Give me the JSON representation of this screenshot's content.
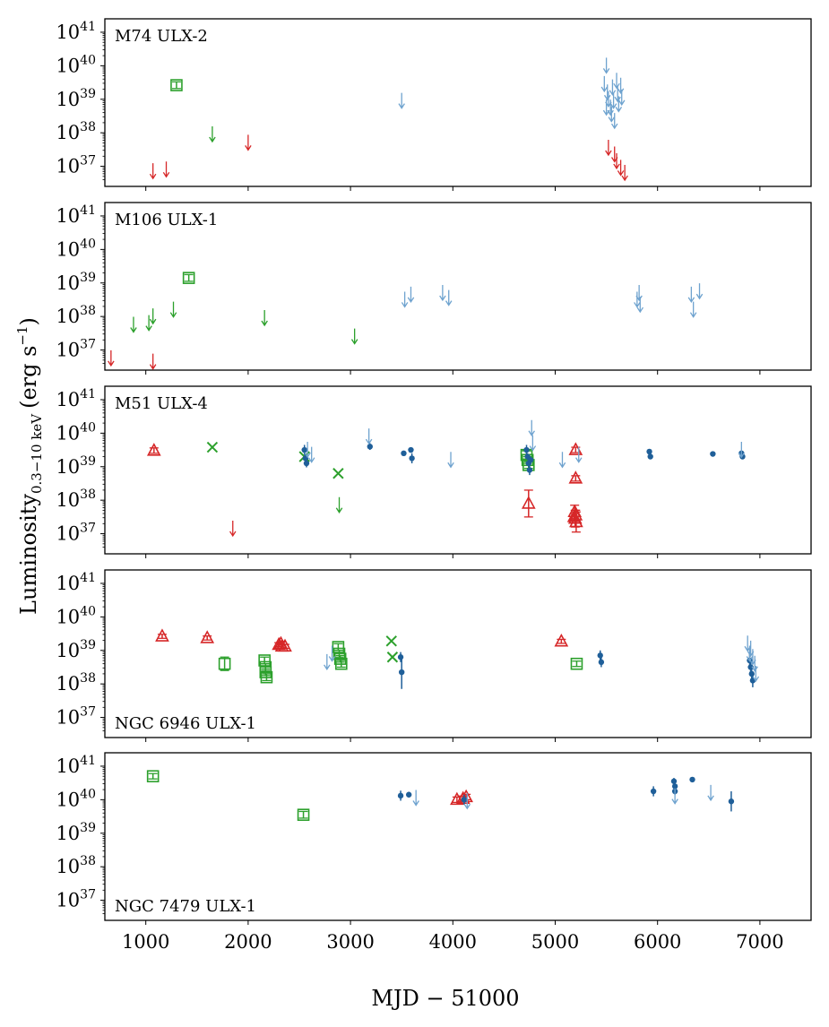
{
  "chart_data": {
    "type": "scatter",
    "xlabel": "MJD − 51000",
    "ylabel_main": "Luminosity",
    "ylabel_sub": "0.3−10 keV",
    "ylabel_unit": "(erg s",
    "ylabel_unit_exp": "−1",
    "ylabel_close": ")",
    "xlim": [
      600,
      7500
    ],
    "ylim_log10": [
      36.4,
      41.4
    ],
    "xticks": [
      {
        "v": 1000,
        "label": "1000"
      },
      {
        "v": 2000,
        "label": "2000"
      },
      {
        "v": 3000,
        "label": "3000"
      },
      {
        "v": 4000,
        "label": "4000"
      },
      {
        "v": 5000,
        "label": "5000"
      },
      {
        "v": 6000,
        "label": "6000"
      },
      {
        "v": 7000,
        "label": "7000"
      }
    ],
    "yticks": [
      {
        "v": 37,
        "base": "10",
        "exp": "37"
      },
      {
        "v": 38,
        "base": "10",
        "exp": "38"
      },
      {
        "v": 39,
        "base": "10",
        "exp": "39"
      },
      {
        "v": 40,
        "base": "10",
        "exp": "40"
      },
      {
        "v": 41,
        "base": "10",
        "exp": "41"
      }
    ],
    "colors": {
      "red": "#d62728",
      "green": "#2ca02c",
      "blue": "#1f5f99",
      "lightblue": "#6fa3cf"
    },
    "panels": [
      {
        "title": "M74 ULX-2",
        "title_pos": "top-left",
        "series": [
          {
            "color": "red",
            "marker": "arrow",
            "points": [
              [
                1070,
                36.85
              ],
              [
                1200,
                36.9
              ],
              [
                2000,
                37.7
              ],
              [
                5520,
                37.55
              ],
              [
                5580,
                37.35
              ],
              [
                5600,
                37.15
              ],
              [
                5640,
                36.95
              ],
              [
                5680,
                36.8
              ]
            ]
          },
          {
            "color": "green",
            "marker": "arrow",
            "points": [
              [
                1650,
                37.95
              ]
            ]
          },
          {
            "color": "green",
            "marker": "square",
            "points": [
              [
                1300,
                39.42,
                0.1
              ]
            ]
          },
          {
            "color": "lightblue",
            "marker": "arrow",
            "points": [
              [
                3500,
                38.95
              ],
              [
                5500,
                40.0
              ],
              [
                5480,
                39.45
              ],
              [
                5510,
                39.2
              ],
              [
                5520,
                39.0
              ],
              [
                5540,
                38.75
              ],
              [
                5550,
                38.55
              ],
              [
                5560,
                39.35
              ],
              [
                5570,
                38.95
              ],
              [
                5580,
                38.35
              ],
              [
                5600,
                39.55
              ],
              [
                5610,
                39.15
              ],
              [
                5620,
                38.85
              ],
              [
                5640,
                39.4
              ],
              [
                5650,
                39.05
              ],
              [
                5500,
                38.75
              ]
            ]
          }
        ]
      },
      {
        "title": "M106 ULX-1",
        "title_pos": "top-left",
        "series": [
          {
            "color": "red",
            "marker": "arrow",
            "points": [
              [
                660,
                36.75
              ],
              [
                1070,
                36.65
              ]
            ]
          },
          {
            "color": "green",
            "marker": "arrow",
            "points": [
              [
                880,
                37.75
              ],
              [
                1030,
                37.8
              ],
              [
                1070,
                38.0
              ],
              [
                1270,
                38.2
              ],
              [
                2160,
                37.95
              ],
              [
                3040,
                37.4
              ]
            ]
          },
          {
            "color": "green",
            "marker": "square",
            "points": [
              [
                1420,
                39.15,
                0.1
              ]
            ]
          },
          {
            "color": "lightblue",
            "marker": "arrow",
            "points": [
              [
                3530,
                38.5
              ],
              [
                3590,
                38.65
              ],
              [
                3900,
                38.7
              ],
              [
                3960,
                38.55
              ],
              [
                5800,
                38.5
              ],
              [
                5820,
                38.7
              ],
              [
                5830,
                38.35
              ],
              [
                6330,
                38.65
              ],
              [
                6350,
                38.2
              ],
              [
                6410,
                38.75
              ]
            ]
          }
        ]
      },
      {
        "title": "M51 ULX-4",
        "title_pos": "top-left",
        "series": [
          {
            "color": "red",
            "marker": "triangle",
            "points": [
              [
                1080,
                39.48,
                0.08
              ],
              [
                4740,
                37.9,
                0.4
              ],
              [
                5200,
                39.5,
                0.08
              ],
              [
                5200,
                38.65,
                0.08
              ],
              [
                5190,
                37.65,
                0.2
              ],
              [
                5195,
                37.45,
                0.25
              ],
              [
                5200,
                37.55,
                0.15
              ],
              [
                5205,
                37.35,
                0.3
              ],
              [
                5185,
                37.5,
                0.1
              ]
            ]
          },
          {
            "color": "red",
            "marker": "arrow",
            "points": [
              [
                1850,
                37.15
              ]
            ]
          },
          {
            "color": "green",
            "marker": "cross",
            "points": [
              [
                1650,
                39.58
              ],
              [
                2550,
                39.3
              ],
              [
                2880,
                38.8
              ]
            ]
          },
          {
            "color": "green",
            "marker": "arrow",
            "points": [
              [
                2890,
                37.85
              ]
            ]
          },
          {
            "color": "green",
            "marker": "square",
            "points": [
              [
                4720,
                39.35,
                0.12
              ],
              [
                4730,
                39.2,
                0.1
              ],
              [
                4740,
                39.05,
                0.1
              ]
            ]
          },
          {
            "color": "blue",
            "marker": "dot",
            "points": [
              [
                2550,
                39.5,
                0.15
              ],
              [
                2560,
                39.25,
                0.15
              ],
              [
                2570,
                39.1,
                0.12
              ],
              [
                3190,
                39.6,
                0.1
              ],
              [
                3520,
                39.4,
                0.06
              ],
              [
                3590,
                39.5,
                0.07
              ],
              [
                3600,
                39.25,
                0.15
              ],
              [
                4720,
                39.5,
                0.15
              ],
              [
                4730,
                39.3,
                0.1
              ],
              [
                4740,
                39.1,
                0.1
              ],
              [
                4750,
                38.9,
                0.15
              ],
              [
                4760,
                39.2,
                0.1
              ],
              [
                5920,
                39.45,
                0.06
              ],
              [
                5930,
                39.3,
                0.06
              ],
              [
                6540,
                39.38,
                0.06
              ],
              [
                6820,
                39.4,
                0.08
              ],
              [
                6830,
                39.3,
                0.06
              ]
            ]
          },
          {
            "color": "lightblue",
            "marker": "arrow",
            "points": [
              [
                2580,
                39.5
              ],
              [
                2620,
                39.35
              ],
              [
                3180,
                39.9
              ],
              [
                3980,
                39.2
              ],
              [
                4770,
                40.15
              ],
              [
                4780,
                39.7
              ],
              [
                5070,
                39.2
              ],
              [
                5230,
                39.35
              ],
              [
                6820,
                39.5
              ]
            ]
          }
        ]
      },
      {
        "title": "NGC 6946 ULX-1",
        "title_pos": "bottom-left",
        "series": [
          {
            "color": "red",
            "marker": "triangle",
            "points": [
              [
                1160,
                39.42,
                0.06
              ],
              [
                1600,
                39.37,
                0.06
              ],
              [
                2300,
                39.17,
                0.06
              ],
              [
                2330,
                39.12,
                0.06
              ],
              [
                2360,
                39.12,
                0.06
              ],
              [
                2320,
                39.2,
                0.05
              ],
              [
                5060,
                39.27,
                0.06
              ]
            ]
          },
          {
            "color": "green",
            "marker": "square",
            "points": [
              [
                1770,
                38.6,
                0.2
              ],
              [
                2160,
                38.7,
                0.1
              ],
              [
                2170,
                38.5,
                0.1
              ],
              [
                2170,
                38.35,
                0.1
              ],
              [
                2180,
                38.2,
                0.1
              ],
              [
                2880,
                39.1,
                0.1
              ],
              [
                2890,
                38.9,
                0.1
              ],
              [
                2900,
                38.75,
                0.1
              ],
              [
                2910,
                38.6,
                0.1
              ],
              [
                5210,
                38.6,
                0.08
              ]
            ]
          },
          {
            "color": "green",
            "marker": "cross",
            "points": [
              [
                3400,
                39.28
              ],
              [
                3410,
                38.8
              ]
            ]
          },
          {
            "color": "blue",
            "marker": "dot",
            "points": [
              [
                3490,
                38.8,
                0.15
              ],
              [
                3500,
                38.35,
                0.5
              ],
              [
                5440,
                38.85,
                0.15
              ],
              [
                5450,
                38.65,
                0.15
              ],
              [
                6900,
                38.7,
                0.2
              ],
              [
                6910,
                38.5,
                0.2
              ],
              [
                6920,
                38.3,
                0.2
              ],
              [
                6930,
                38.1,
                0.2
              ]
            ]
          },
          {
            "color": "lightblue",
            "marker": "arrow",
            "points": [
              [
                2770,
                38.65
              ],
              [
                2820,
                38.9
              ],
              [
                6880,
                39.2
              ],
              [
                6900,
                38.9
              ],
              [
                6910,
                39.05
              ],
              [
                6930,
                38.8
              ],
              [
                6950,
                38.6
              ],
              [
                6960,
                38.3
              ]
            ]
          }
        ]
      },
      {
        "title": "NGC 7479 ULX-1",
        "title_pos": "bottom-left",
        "series": [
          {
            "color": "green",
            "marker": "square",
            "points": [
              [
                1070,
                40.7,
                0.08
              ],
              [
                2540,
                39.55,
                0.1
              ]
            ]
          },
          {
            "color": "red",
            "marker": "triangle",
            "points": [
              [
                4040,
                40.0,
                0.08
              ],
              [
                4100,
                40.03,
                0.08
              ],
              [
                4130,
                40.08,
                0.08
              ]
            ]
          },
          {
            "color": "blue",
            "marker": "dot",
            "points": [
              [
                3490,
                40.12,
                0.15
              ],
              [
                3570,
                40.15,
                0.08
              ],
              [
                4110,
                40.0,
                0.15
              ],
              [
                5960,
                40.25,
                0.15
              ],
              [
                6160,
                40.55,
                0.1
              ],
              [
                6170,
                40.4,
                0.1
              ],
              [
                6170,
                40.25,
                0.1
              ],
              [
                6340,
                40.6,
                0.06
              ],
              [
                6720,
                39.95,
                0.3
              ]
            ]
          },
          {
            "color": "lightblue",
            "marker": "arrow",
            "points": [
              [
                3640,
                40.05
              ],
              [
                4140,
                39.95
              ],
              [
                6170,
                40.1
              ],
              [
                6520,
                40.2
              ]
            ]
          }
        ]
      }
    ]
  }
}
